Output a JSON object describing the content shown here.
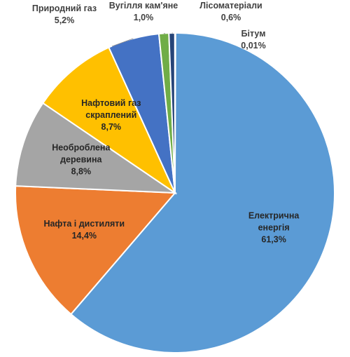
{
  "chart_data": {
    "type": "pie",
    "title": "",
    "start_angle_deg": 0,
    "direction": "clockwise",
    "slices": [
      {
        "label": [
          "Електрична",
          "енергія"
        ],
        "value_text": "61,3%",
        "value": 61.3,
        "color": "#5b9bd5",
        "placement": "inside"
      },
      {
        "label": [
          "Нафта і дистиляти"
        ],
        "value_text": "14,4%",
        "value": 14.4,
        "color": "#ed7d31",
        "placement": "inside"
      },
      {
        "label": [
          "Необроблена",
          "деревина"
        ],
        "value_text": "8,8%",
        "value": 8.8,
        "color": "#a5a5a5",
        "placement": "inside"
      },
      {
        "label": [
          "Нафтовий газ",
          "скраплений"
        ],
        "value_text": "8,7%",
        "value": 8.7,
        "color": "#ffc000",
        "placement": "inside"
      },
      {
        "label": [
          "Природний газ"
        ],
        "value_text": "5,2%",
        "value": 5.2,
        "color": "#4472c4",
        "placement": "outside"
      },
      {
        "label": [
          "Вугілля кам'яне"
        ],
        "value_text": "1,0%",
        "value": 1.0,
        "color": "#70ad47",
        "placement": "outside"
      },
      {
        "label": [
          "Лісоматеріали"
        ],
        "value_text": "0,6%",
        "value": 0.6,
        "color": "#264478",
        "placement": "outside"
      },
      {
        "label": [
          "Бітум"
        ],
        "value_text": "0,01%",
        "value": 0.01,
        "color": "#9e480e",
        "placement": "outside"
      }
    ]
  }
}
